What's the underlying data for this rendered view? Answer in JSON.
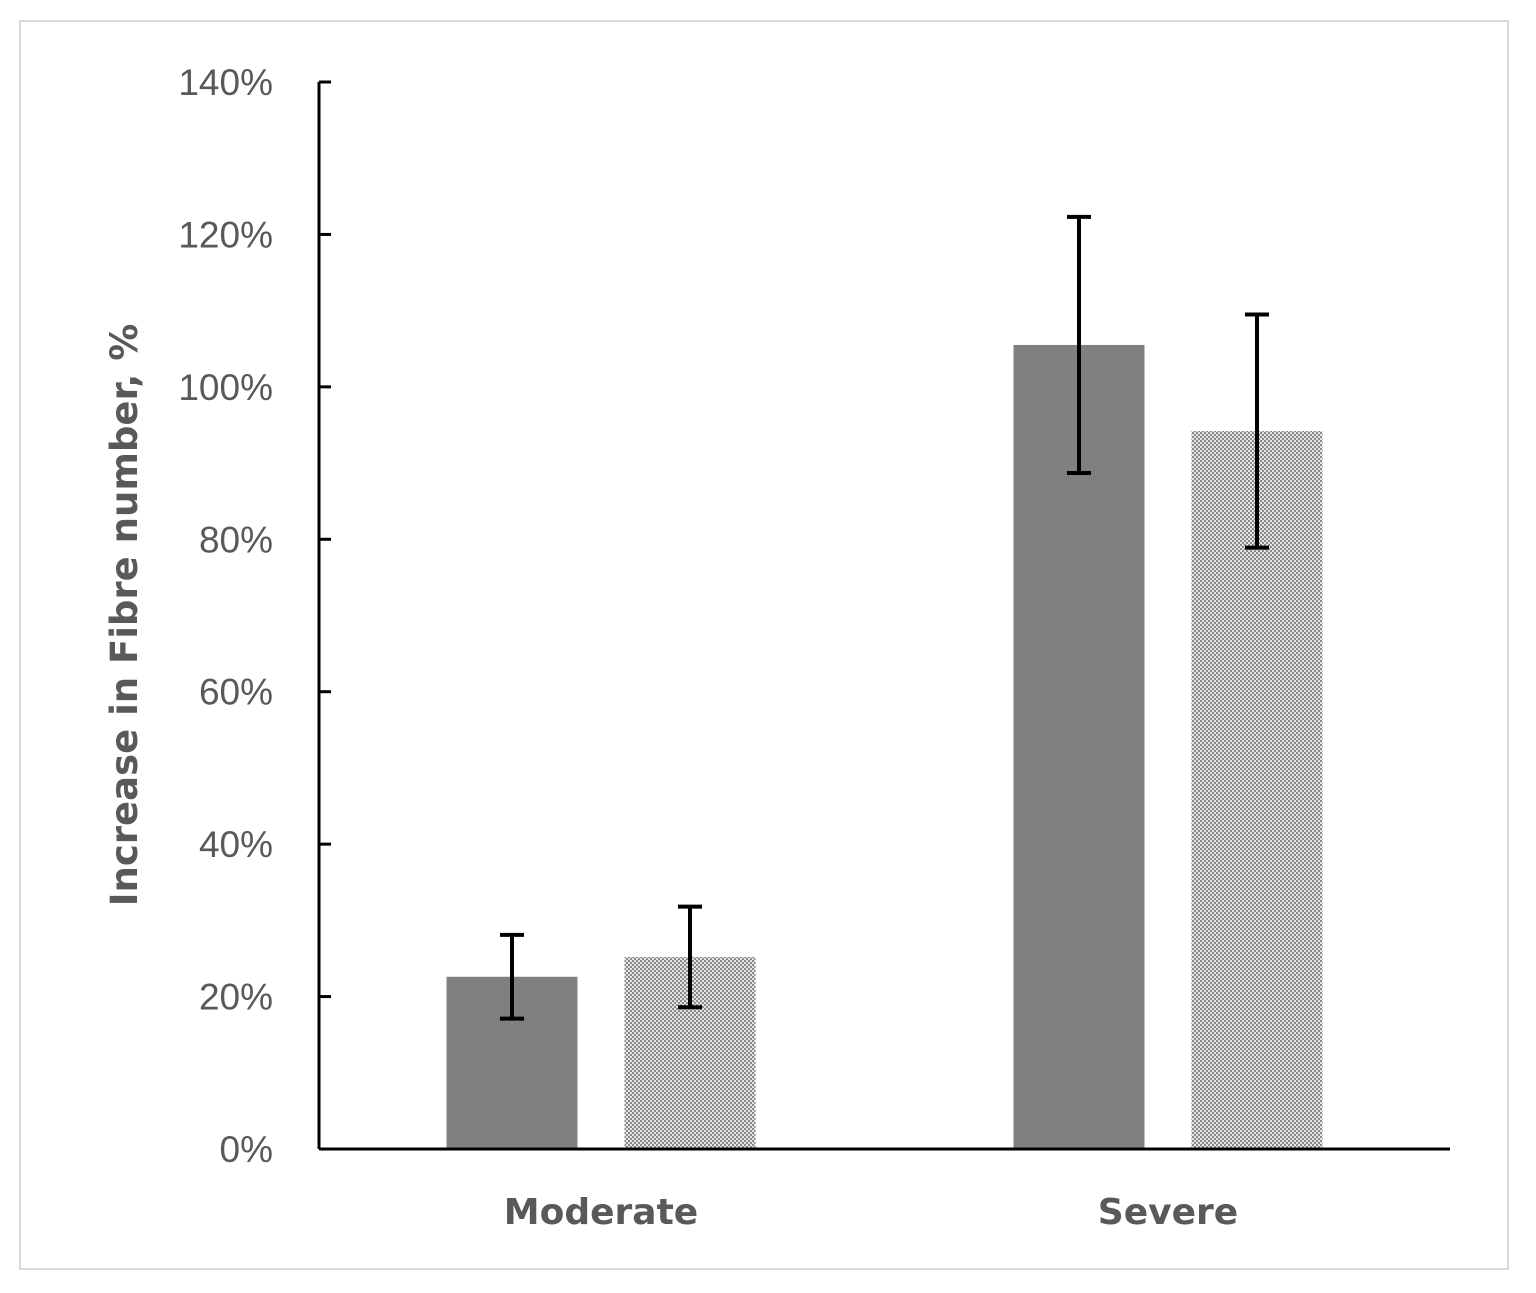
{
  "chart_data": {
    "type": "bar",
    "title": "",
    "xlabel": "",
    "ylabel": "Increase in Fibre number, %",
    "ylim": [
      0,
      140
    ],
    "yticks": [
      0,
      20,
      40,
      60,
      80,
      100,
      120,
      140
    ],
    "ytick_labels": [
      "0%",
      "20%",
      "40%",
      "60%",
      "80%",
      "100%",
      "120%",
      "140%"
    ],
    "categories": [
      "Moderate",
      "Severe"
    ],
    "grid": false,
    "legend": "none",
    "series": [
      {
        "values": [
          22.6,
          105.5
        ],
        "error": [
          5.5,
          16.8
        ],
        "color": "#808080",
        "pattern": "solid"
      },
      {
        "values": [
          25.2,
          94.2
        ],
        "error": [
          6.6,
          15.3
        ],
        "color": "#bfbfbf",
        "pattern": "checker"
      }
    ]
  }
}
